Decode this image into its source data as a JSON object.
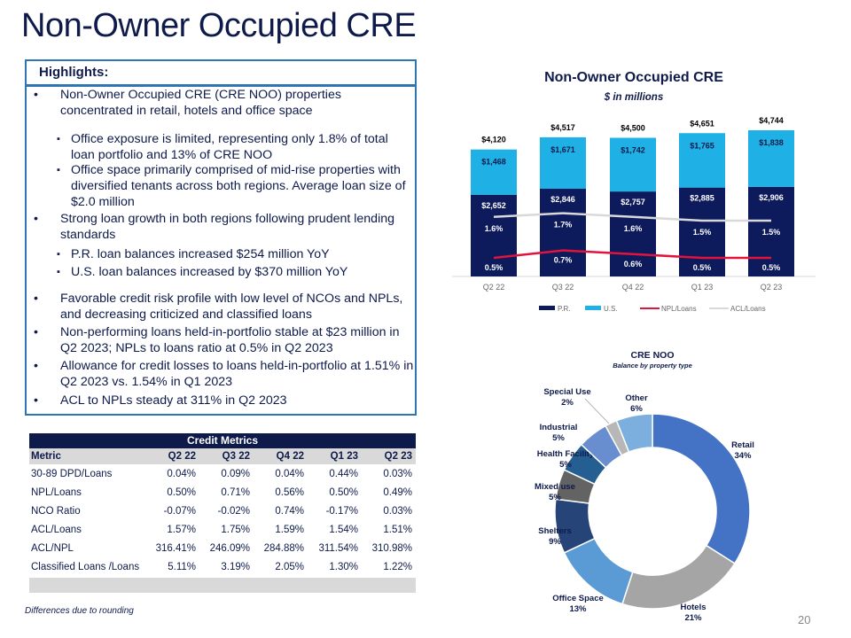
{
  "title": "Non-Owner Occupied CRE",
  "highlights": {
    "header": "Highlights:",
    "bullets": [
      {
        "level": 1,
        "text": "Non-Owner Occupied CRE (CRE NOO) properties concentrated in retail, hotels and office space"
      },
      {
        "level": 2,
        "text": "Office exposure is limited, representing only 1.8% of total loan portfolio and 13% of CRE NOO"
      },
      {
        "level": 2,
        "text": "Office space primarily comprised of mid-rise properties with diversified tenants across both regions. Average loan size of $2.0 million"
      },
      {
        "level": 1,
        "text": "Strong loan growth in both regions following prudent lending standards"
      },
      {
        "level": 2,
        "text": "P.R. loan balances increased $254 million YoY"
      },
      {
        "level": 2,
        "text": "U.S. loan balances increased by $370 million YoY"
      },
      {
        "level": 1,
        "text": "Favorable credit risk profile with low level of NCOs and NPLs, and decreasing criticized and classified loans"
      },
      {
        "level": 1,
        "text": "Non-performing loans held-in-portfolio stable at $23 million in Q2 2023; NPLs to loans ratio at 0.5% in Q2 2023"
      },
      {
        "level": 1,
        "text": "Allowance for credit losses to loans held-in-portfolio at 1.51% in Q2 2023 vs. 1.54% in Q1 2023"
      },
      {
        "level": 1,
        "text": "ACL to NPLs steady at 311% in Q2 2023"
      }
    ]
  },
  "chart_data": [
    {
      "type": "bar",
      "stacked": true,
      "title": "Non-Owner Occupied CRE",
      "subtitle": "$ in millions",
      "categories": [
        "Q2 22",
        "Q3 22",
        "Q4 22",
        "Q1 23",
        "Q2 23"
      ],
      "series": [
        {
          "name": "P.R.",
          "values": [
            2652,
            2846,
            2757,
            2885,
            2906
          ],
          "labels": [
            "$2,652",
            "$2,846",
            "$2,757",
            "$2,885",
            "$2,906"
          ],
          "color": "#0d1a5c"
        },
        {
          "name": "U.S.",
          "values": [
            1468,
            1671,
            1742,
            1765,
            1838
          ],
          "labels": [
            "$1,468",
            "$1,671",
            "$1,742",
            "$1,765",
            "$1,838"
          ],
          "color": "#1fb1e6"
        },
        {
          "name": "NPL/Loans",
          "type": "line",
          "values": [
            0.5,
            0.7,
            0.6,
            0.5,
            0.5
          ],
          "labels": [
            "0.5%",
            "0.7%",
            "0.6%",
            "0.5%",
            "0.5%"
          ],
          "color": "#e0143c"
        },
        {
          "name": "ACL/Loans",
          "type": "line",
          "values": [
            1.6,
            1.7,
            1.6,
            1.5,
            1.5
          ],
          "labels": [
            "1.6%",
            "1.7%",
            "1.6%",
            "1.5%",
            "1.5%"
          ],
          "color": "#d9d9d9"
        }
      ],
      "totals": [
        "$4,120",
        "$4,517",
        "$4,500",
        "$4,651",
        "$4,744"
      ],
      "legend": "bottom"
    },
    {
      "type": "pie",
      "donut": true,
      "title": "CRE NOO",
      "subtitle": "Balance by property type",
      "slices": [
        {
          "name": "Retail",
          "value": 34,
          "label": "34%",
          "color": "#4472c4"
        },
        {
          "name": "Hotels",
          "value": 21,
          "label": "21%",
          "color": "#a5a5a5"
        },
        {
          "name": "Office Space",
          "value": 13,
          "label": "13%",
          "color": "#5b9bd5"
        },
        {
          "name": "Shelters",
          "value": 9,
          "label": "9%",
          "color": "#264478"
        },
        {
          "name": "Mixed use",
          "value": 5,
          "label": "5%",
          "color": "#636363"
        },
        {
          "name": "Health Facility",
          "value": 5,
          "label": "5%",
          "color": "#255e91"
        },
        {
          "name": "Industrial",
          "value": 5,
          "label": "5%",
          "color": "#698ed0"
        },
        {
          "name": "Special Use",
          "value": 2,
          "label": "2%",
          "color": "#b7b7b7"
        },
        {
          "name": "Other",
          "value": 6,
          "label": "6%",
          "color": "#7cafdd"
        }
      ]
    }
  ],
  "credit_metrics": {
    "caption": "Credit Metrics",
    "headers": [
      "Metric",
      "Q2 22",
      "Q3 22",
      "Q4 22",
      "Q1 23",
      "Q2 23"
    ],
    "rows": [
      [
        "30-89 DPD/Loans",
        "0.04%",
        "0.09%",
        "0.04%",
        "0.44%",
        "0.03%"
      ],
      [
        "NPL/Loans",
        "0.50%",
        "0.71%",
        "0.56%",
        "0.50%",
        "0.49%"
      ],
      [
        "NCO Ratio",
        "-0.07%",
        "-0.02%",
        "0.74%",
        "-0.17%",
        "0.03%"
      ],
      [
        "ACL/Loans",
        "1.57%",
        "1.75%",
        "1.59%",
        "1.54%",
        "1.51%"
      ],
      [
        "ACL/NPL",
        "316.41%",
        "246.09%",
        "284.88%",
        "311.54%",
        "310.98%"
      ],
      [
        "Classified Loans /Loans",
        "5.11%",
        "3.19%",
        "2.05%",
        "1.30%",
        "1.22%"
      ]
    ]
  },
  "footnote": "Differences due to rounding",
  "page_number": "20"
}
